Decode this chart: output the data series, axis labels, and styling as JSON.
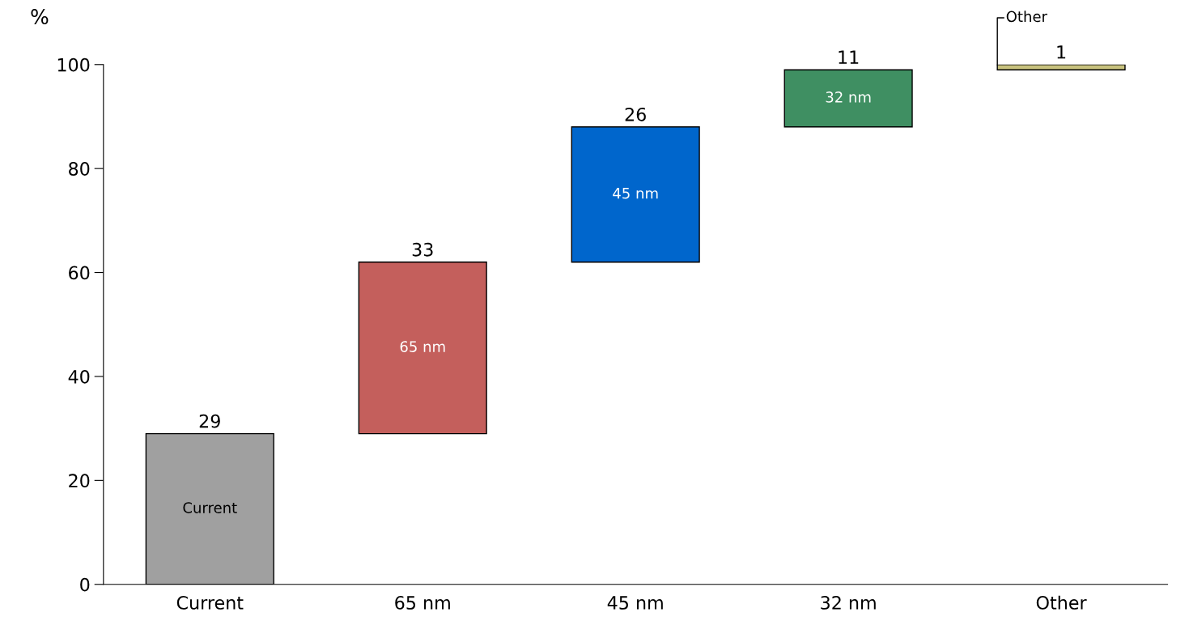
{
  "chart_data": {
    "type": "bar",
    "categories": [
      "Current",
      "65 nm",
      "45 nm",
      "32 nm",
      "Other"
    ],
    "values": [
      29,
      33,
      26,
      11,
      1
    ],
    "base": [
      0,
      29,
      62,
      88,
      99
    ],
    "colors": [
      "#a0a0a0",
      "#c45f5c",
      "#0066cc",
      "#3f8f62",
      "#c8c27e"
    ],
    "ylabel": "%",
    "ylim": [
      0,
      100
    ],
    "yticks": [
      0,
      20,
      40,
      60,
      80,
      100
    ],
    "data_labels": true,
    "grid": false,
    "legend": false,
    "annotations": [
      "Current",
      "65 nm",
      "45 nm",
      "32 nm",
      "Other"
    ]
  }
}
